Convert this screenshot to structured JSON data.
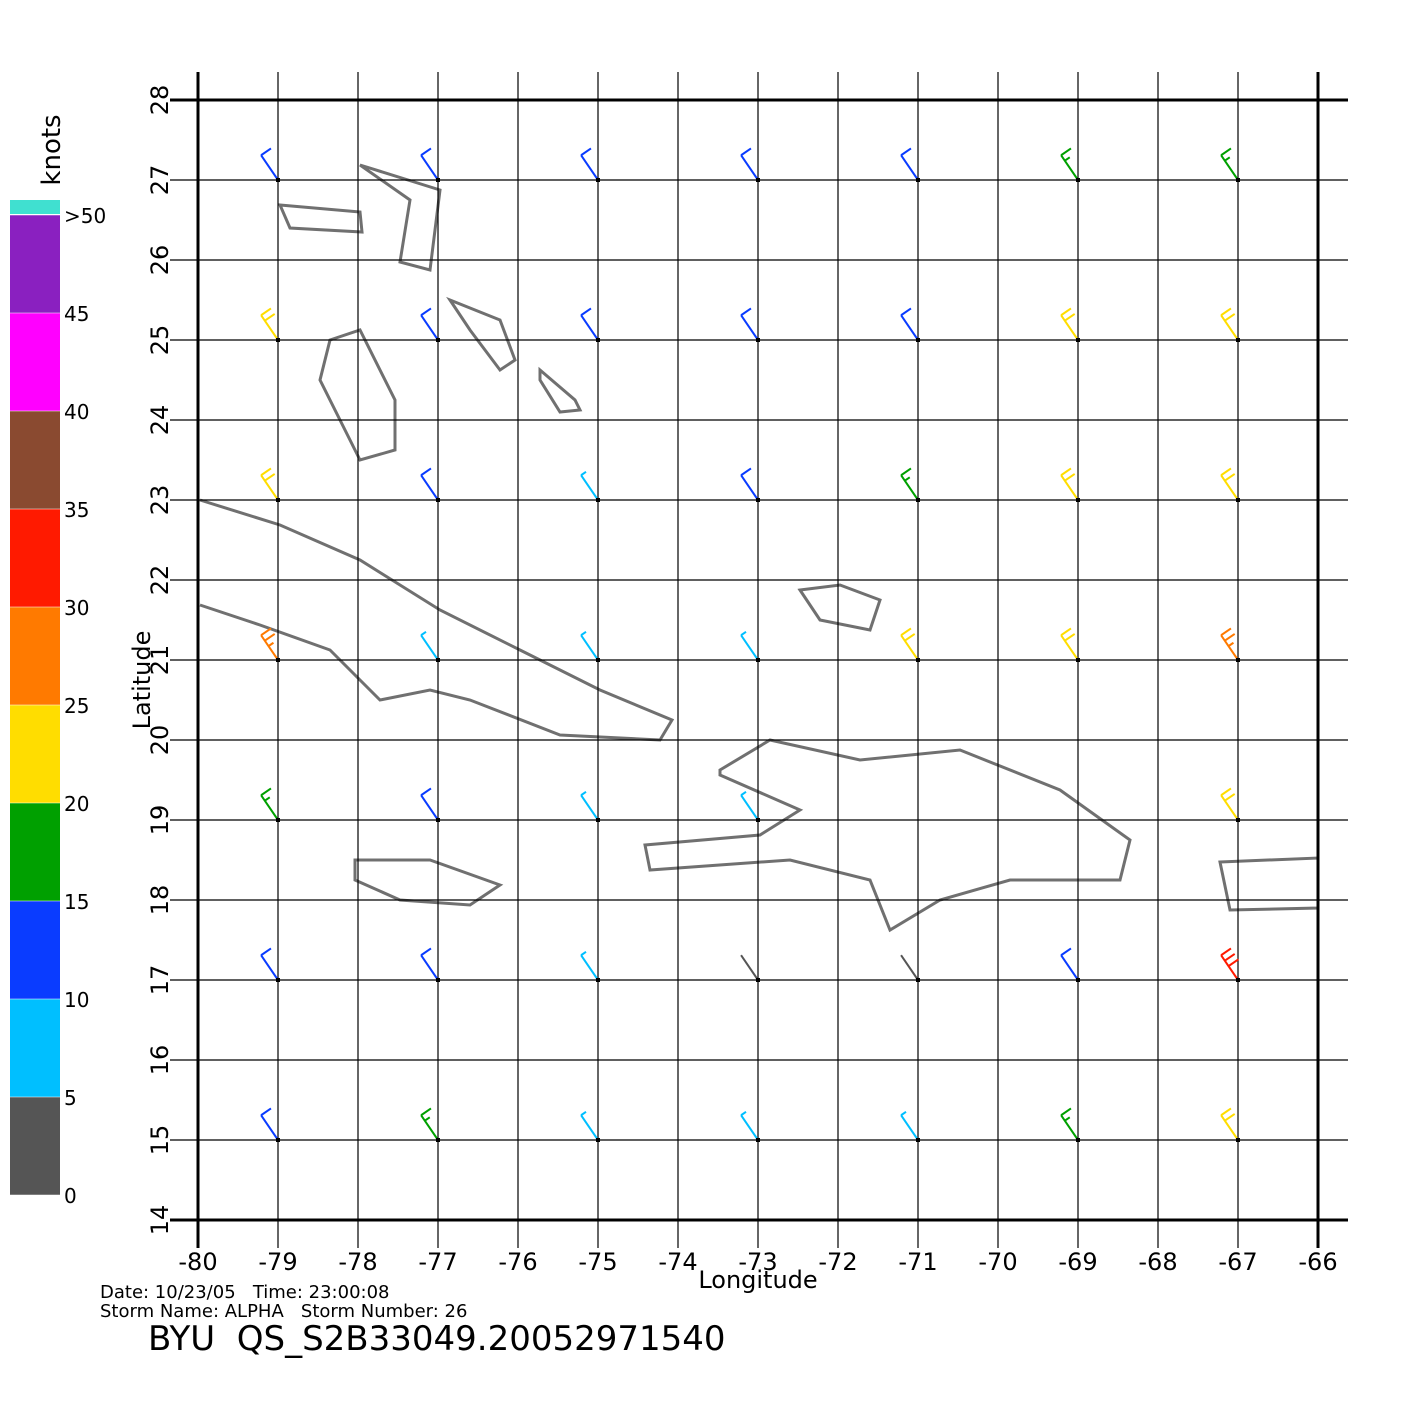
{
  "chart_data": {
    "type": "wind-map",
    "xlabel": "Longitude",
    "ylabel": "Latitude",
    "xlim": [
      -80,
      -66
    ],
    "ylim": [
      14,
      28
    ],
    "xticks": [
      -80,
      -79,
      -78,
      -77,
      -76,
      -75,
      -74,
      -73,
      -72,
      -71,
      -70,
      -69,
      -68,
      -67,
      -66
    ],
    "yticks": [
      14,
      15,
      16,
      17,
      18,
      19,
      20,
      21,
      22,
      23,
      24,
      25,
      26,
      27,
      28
    ],
    "grid": true,
    "colorbar": {
      "title": "knots",
      "ticks": [
        0,
        5,
        10,
        15,
        20,
        25,
        30,
        35,
        40,
        45,
        {
          "value": 50,
          "label": ">50"
        }
      ],
      "bins": [
        0,
        5,
        10,
        15,
        20,
        25,
        30,
        35,
        40,
        45,
        50
      ],
      "colors": [
        "#555555",
        "#00bfff",
        "#0a3cff",
        "#00a000",
        "#ffdd00",
        "#ff7a00",
        "#ff1a00",
        "#8a4a30",
        "#ff00ff",
        "#8a20c0"
      ]
    },
    "wind": {
      "lon": [
        -79,
        -77,
        -75,
        -73,
        -71,
        -69,
        -67
      ],
      "lat": [
        27,
        25,
        23,
        21,
        19,
        17,
        15
      ],
      "speed": [
        [
          12,
          10,
          10,
          14,
          12,
          17,
          18
        ],
        [
          20,
          12,
          10,
          10,
          14,
          20,
          20
        ],
        [
          22,
          10,
          7,
          12,
          17,
          22,
          20
        ],
        [
          25,
          8,
          6,
          5,
          20,
          22,
          28
        ],
        [
          16,
          10,
          8,
          8,
          null,
          null,
          20
        ],
        [
          12,
          10,
          9,
          3,
          4,
          12,
          30
        ],
        [
          12,
          16,
          8,
          6,
          5,
          15,
          22
        ]
      ]
    },
    "date_line": "Date: 10/23/05   Time: 23:00:08",
    "storm_line": "Storm Name: ALPHA   Storm Number: 26",
    "file_name": "BYU  QS_S2B33049.20052971540"
  }
}
